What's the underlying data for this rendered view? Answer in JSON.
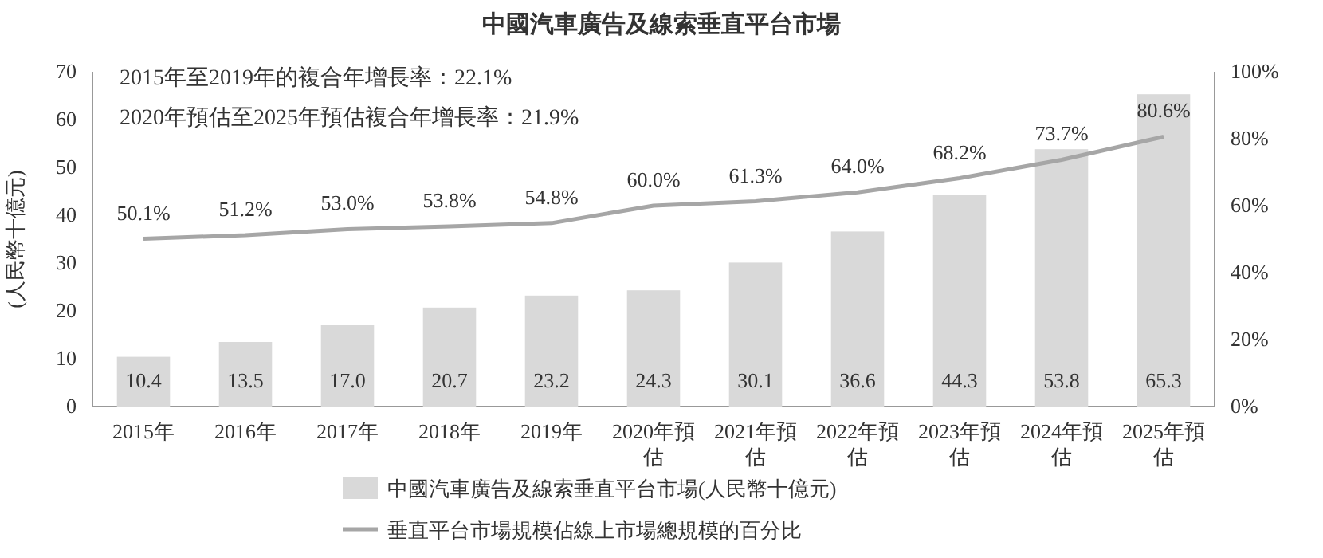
{
  "chart_data": {
    "type": "bar",
    "title": "中國汽車廣告及線索垂直平台市場",
    "categories": [
      "2015年",
      "2016年",
      "2017年",
      "2018年",
      "2019年",
      "2020年預估",
      "2021年預估",
      "2022年預估",
      "2023年預估",
      "2024年預估",
      "2025年預估"
    ],
    "series": [
      {
        "name": "中國汽車廣告及線索垂直平台市場(人民幣十億元)",
        "color": "#d9d9d9",
        "values": [
          10.4,
          13.5,
          17.0,
          20.7,
          23.2,
          24.3,
          30.1,
          36.6,
          44.3,
          53.8,
          65.3
        ],
        "value_labels": [
          "10.4",
          "13.5",
          "17.0",
          "20.7",
          "23.2",
          "24.3",
          "30.1",
          "36.6",
          "44.3",
          "53.8",
          "65.3"
        ]
      },
      {
        "name": "垂直平台市場規模佔線上市場總規模的百分比",
        "type": "line",
        "axis": "y2",
        "color": "#a6a6a6",
        "values": [
          50.1,
          51.2,
          53.0,
          53.8,
          54.8,
          60.0,
          61.3,
          64.0,
          68.2,
          73.7,
          80.6
        ],
        "value_labels": [
          "50.1%",
          "51.2%",
          "53.0%",
          "53.8%",
          "54.8%",
          "60.0%",
          "61.3%",
          "64.0%",
          "68.2%",
          "73.7%",
          "80.6%"
        ]
      }
    ],
    "ylabel": "(人民幣十億元)",
    "ylim": [
      0,
      70
    ],
    "yticks": [
      0,
      10,
      20,
      30,
      40,
      50,
      60,
      70
    ],
    "y2lim": [
      0,
      100
    ],
    "y2ticks": [
      {
        "value": 0,
        "label": "0%"
      },
      {
        "value": 20,
        "label": "20%"
      },
      {
        "value": 40,
        "label": "40%"
      },
      {
        "value": 60,
        "label": "60%"
      },
      {
        "value": 80,
        "label": "80%"
      },
      {
        "value": 100,
        "label": "100%"
      }
    ],
    "annotations": [
      "2015年至2019年的複合年增長率：22.1%",
      "2020年預估至2025年預估複合年增長率：21.9%"
    ],
    "legend": "bottom",
    "marker": "none",
    "line_style": "solid"
  }
}
